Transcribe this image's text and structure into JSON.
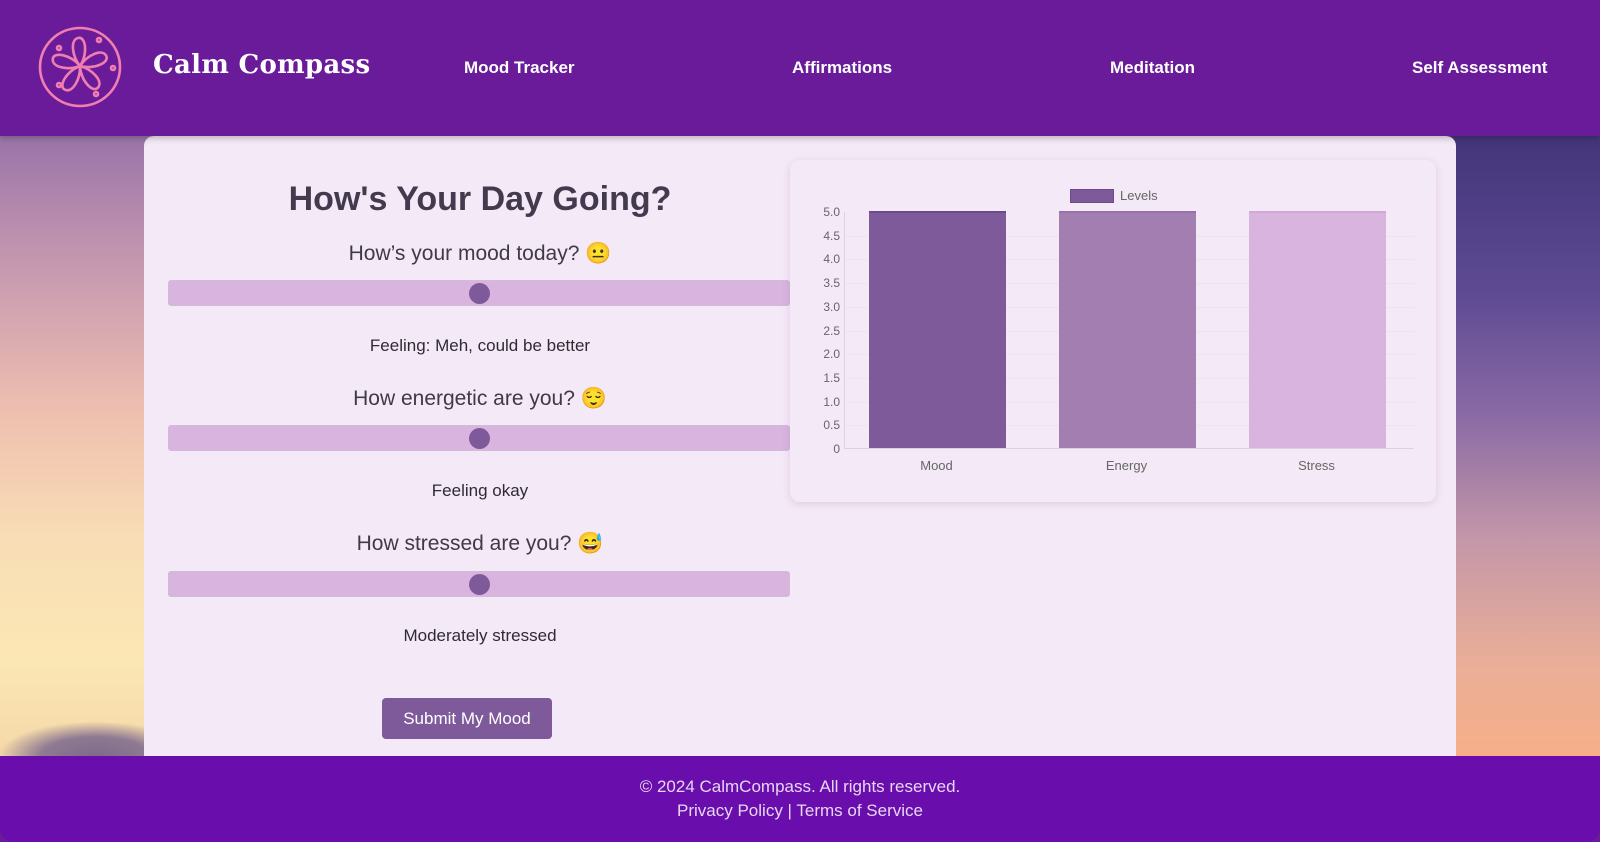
{
  "header": {
    "brand": "Calm Compass",
    "logo_icon": "flower-compass-icon",
    "nav": [
      {
        "label": "Mood Tracker"
      },
      {
        "label": "Affirmations"
      },
      {
        "label": "Meditation"
      },
      {
        "label": "Self Assessment"
      }
    ]
  },
  "main": {
    "title": "How's Your Day Going?",
    "questions": [
      {
        "label": "How’s your mood today? 😐",
        "slider_value_pct": 50,
        "status": "Feeling: Meh, could be better"
      },
      {
        "label": "How energetic are you? 😌",
        "slider_value_pct": 50,
        "status": "Feeling okay"
      },
      {
        "label": "How stressed are you? 😅",
        "slider_value_pct": 50,
        "status": "Moderately stressed"
      }
    ],
    "submit_label": "Submit My Mood"
  },
  "chart_data": {
    "type": "bar",
    "title": "",
    "categories": [
      "Mood",
      "Energy",
      "Stress"
    ],
    "series": [
      {
        "name": "Levels",
        "values": [
          5,
          5,
          5
        ]
      }
    ],
    "colors": [
      "#7e5a9b",
      "#a37eb0",
      "#d8b4df"
    ],
    "legend": {
      "entries": [
        "Levels"
      ],
      "position": "top"
    },
    "yticks": [
      "5.0",
      "4.5",
      "4.0",
      "3.5",
      "3.0",
      "2.5",
      "2.0",
      "1.5",
      "1.0",
      "0.5",
      "0"
    ],
    "ylim": [
      0,
      5
    ],
    "xlabel": "",
    "ylabel": "",
    "grid": true
  },
  "footer": {
    "copyright": "© 2024 CalmCompass. All rights reserved.",
    "privacy": "Privacy Policy",
    "separator": " | ",
    "terms": "Terms of Service"
  },
  "colors": {
    "header_bg": "#6a1b9a",
    "footer_bg": "#6a0dad",
    "accent": "#7e5a9b",
    "card_bg": "#f4e9f6",
    "logo": "#f07fb0"
  }
}
